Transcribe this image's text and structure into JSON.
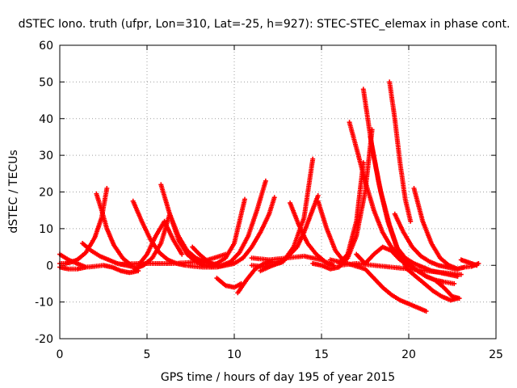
{
  "chart_data": {
    "type": "scatter",
    "title": "dSTEC Iono. truth (ufpr, Lon=310, Lat=-25, h=927): STEC-STEC_elemax in phase cont.",
    "xlabel": "GPS time / hours of day 195 of year 2015",
    "ylabel": "dSTEC  / TECUs",
    "xlim": [
      0,
      25
    ],
    "ylim": [
      -20,
      60
    ],
    "x_ticks": [
      0,
      5,
      10,
      15,
      20,
      25
    ],
    "y_ticks": [
      -20,
      -10,
      0,
      10,
      20,
      30,
      40,
      50,
      60
    ],
    "grid": true,
    "legend": "none",
    "marker": "plus",
    "color": "#ff0000",
    "series": [
      {
        "x": [
          0.0,
          0.3,
          0.6,
          1.0,
          1.5,
          2.0,
          2.4,
          2.7
        ],
        "y": [
          0.5,
          0.5,
          0.8,
          1.5,
          3.5,
          7.5,
          13.0,
          21.0
        ]
      },
      {
        "x": [
          2.1,
          2.4,
          2.7,
          3.1,
          3.6,
          4.1
        ],
        "y": [
          19.5,
          15.0,
          10.0,
          5.5,
          2.0,
          0.0
        ]
      },
      {
        "x": [
          0.0,
          0.5,
          1.0,
          1.5
        ],
        "y": [
          3.0,
          1.5,
          0.5,
          -0.5
        ]
      },
      {
        "x": [
          0.0,
          0.5,
          1.0,
          1.5,
          2.0,
          2.5,
          3.0,
          3.5,
          4.0,
          4.5
        ],
        "y": [
          -0.5,
          -1.0,
          -1.0,
          -0.5,
          -0.3,
          0.0,
          -0.5,
          -1.5,
          -2.0,
          -1.5
        ]
      },
      {
        "x": [
          1.3,
          1.8,
          2.3,
          2.8,
          3.3,
          3.8,
          4.3
        ],
        "y": [
          6.0,
          4.0,
          2.5,
          1.5,
          0.5,
          0.0,
          -0.5
        ]
      },
      {
        "x": [
          4.3,
          4.8,
          5.3,
          5.8,
          6.3,
          6.8,
          7.3,
          7.8,
          8.3
        ],
        "y": [
          -1.0,
          0.0,
          2.0,
          6.0,
          14.0,
          7.0,
          3.0,
          1.0,
          0.0
        ]
      },
      {
        "x": [
          4.2,
          4.7,
          5.2,
          5.7,
          6.2,
          6.7,
          7.2,
          7.7,
          8.2,
          8.7
        ],
        "y": [
          17.5,
          12.0,
          7.0,
          3.5,
          1.5,
          0.5,
          0.0,
          -0.3,
          -0.5,
          -0.5
        ]
      },
      {
        "x": [
          4.5,
          5.0,
          5.5,
          6.0,
          6.5,
          7.0
        ],
        "y": [
          0.0,
          3.0,
          8.0,
          12.0,
          7.0,
          3.0
        ]
      },
      {
        "x": [
          5.8,
          6.3,
          6.8,
          7.3,
          7.8,
          8.3,
          8.8,
          9.3
        ],
        "y": [
          22.0,
          14.0,
          8.0,
          4.0,
          2.0,
          0.8,
          0.2,
          0.0
        ]
      },
      {
        "x": [
          3.5,
          4.5,
          5.5,
          6.5,
          7.5,
          8.5,
          9.5
        ],
        "y": [
          0.3,
          0.5,
          0.5,
          0.5,
          0.8,
          1.5,
          3.0
        ]
      },
      {
        "x": [
          7.6,
          8.0,
          8.5,
          9.0
        ],
        "y": [
          5.0,
          3.0,
          1.0,
          0.0
        ]
      },
      {
        "x": [
          8.5,
          9.0,
          9.5,
          10.0,
          10.3,
          10.6
        ],
        "y": [
          0.0,
          0.5,
          2.0,
          6.0,
          12.0,
          18.0
        ]
      },
      {
        "x": [
          8.3,
          8.8,
          9.3,
          9.8,
          10.3,
          10.8,
          11.3,
          11.8
        ],
        "y": [
          0.0,
          -0.3,
          0.0,
          1.0,
          3.5,
          8.0,
          15.0,
          23.0
        ]
      },
      {
        "x": [
          8.5,
          9.0,
          9.5,
          10.0,
          10.5,
          11.0,
          11.5,
          12.0,
          12.3
        ],
        "y": [
          -0.5,
          -0.5,
          0.0,
          0.5,
          2.0,
          5.0,
          9.0,
          14.0,
          18.5
        ]
      },
      {
        "x": [
          9.0,
          9.5,
          10.0,
          10.4
        ],
        "y": [
          -3.5,
          -5.5,
          -6.0,
          -5.0
        ]
      },
      {
        "x": [
          10.2,
          10.7,
          11.2,
          11.7,
          12.2,
          12.7
        ],
        "y": [
          -7.5,
          -4.0,
          -1.0,
          0.5,
          1.0,
          0.8
        ]
      },
      {
        "x": [
          11.0,
          11.6,
          12.2,
          12.8,
          13.4,
          14.0,
          14.5
        ],
        "y": [
          0.0,
          -0.3,
          0.0,
          1.0,
          5.0,
          13.0,
          29.0
        ]
      },
      {
        "x": [
          11.5,
          12.2,
          12.9,
          13.6,
          14.0,
          14.4,
          14.8
        ],
        "y": [
          -1.5,
          0.0,
          1.5,
          5.0,
          9.0,
          14.0,
          19.0
        ]
      },
      {
        "x": [
          13.2,
          13.7,
          14.2,
          14.7,
          15.2,
          15.7
        ],
        "y": [
          17.0,
          11.0,
          6.0,
          3.0,
          1.0,
          0.0
        ]
      },
      {
        "x": [
          14.8,
          15.3,
          15.8,
          16.3
        ],
        "y": [
          17.5,
          10.0,
          4.0,
          1.0
        ]
      },
      {
        "x": [
          11.0,
          12.0,
          13.0,
          14.0,
          15.0,
          15.5
        ],
        "y": [
          2.0,
          1.5,
          2.0,
          2.5,
          1.5,
          0.0
        ]
      },
      {
        "x": [
          14.5,
          15.0,
          15.5,
          16.0,
          16.5,
          17.0,
          17.5,
          17.9
        ],
        "y": [
          0.5,
          0.0,
          -1.0,
          -0.5,
          2.0,
          8.0,
          20.0,
          37.0
        ]
      },
      {
        "x": [
          16.0,
          16.5,
          17.0,
          17.4
        ],
        "y": [
          0.5,
          3.0,
          12.0,
          28.0
        ]
      },
      {
        "x": [
          16.6,
          17.0,
          17.5,
          18.0,
          18.5,
          19.0,
          19.5,
          20.0,
          20.5,
          21.0,
          21.5,
          22.0,
          22.6
        ],
        "y": [
          39.0,
          32.0,
          23.0,
          15.0,
          9.0,
          5.0,
          2.5,
          0.5,
          -1.5,
          -3.0,
          -4.0,
          -4.5,
          -5.0
        ]
      },
      {
        "x": [
          17.4,
          17.9,
          18.4,
          18.9,
          19.4,
          19.9,
          20.4,
          20.9,
          21.4,
          21.9,
          22.4,
          22.8
        ],
        "y": [
          48.0,
          32.0,
          20.0,
          11.0,
          4.0,
          -1.0,
          -3.0,
          -5.0,
          -7.0,
          -8.5,
          -9.5,
          -9.0
        ]
      },
      {
        "x": [
          17.8,
          18.3,
          18.8,
          19.3,
          19.8,
          20.3,
          20.8,
          21.3,
          21.8,
          22.3,
          22.8
        ],
        "y": [
          35.0,
          22.0,
          12.0,
          5.0,
          2.0,
          0.5,
          -0.5,
          -1.5,
          -2.0,
          -2.5,
          -3.0
        ]
      },
      {
        "x": [
          17.0,
          17.5,
          18.0,
          18.5,
          19.0,
          19.5,
          20.0,
          20.5,
          21.0,
          21.5,
          22.0,
          22.5,
          22.9
        ],
        "y": [
          3.0,
          0.5,
          3.0,
          5.0,
          4.0,
          1.5,
          0.0,
          -1.5,
          -3.0,
          -4.0,
          -6.0,
          -8.5,
          -9.0
        ]
      },
      {
        "x": [
          18.9,
          19.2,
          19.5,
          19.8,
          20.1
        ],
        "y": [
          50.0,
          40.0,
          28.0,
          18.0,
          12.0
        ]
      },
      {
        "x": [
          19.2,
          19.7,
          20.2,
          20.7,
          21.2,
          21.7,
          22.2,
          22.7
        ],
        "y": [
          14.0,
          9.0,
          5.0,
          2.5,
          1.0,
          0.0,
          -0.5,
          -1.0
        ]
      },
      {
        "x": [
          20.3,
          20.8,
          21.3,
          21.8,
          22.3,
          22.8
        ],
        "y": [
          21.0,
          12.0,
          6.0,
          2.0,
          0.0,
          -1.0
        ]
      },
      {
        "x": [
          15.5,
          16.5,
          17.5,
          18.0,
          18.5,
          19.0,
          19.5,
          20.0,
          20.5,
          21.0
        ],
        "y": [
          1.5,
          0.5,
          -1.0,
          -3.5,
          -6.0,
          -8.0,
          -9.5,
          -10.5,
          -11.5,
          -12.5
        ]
      },
      {
        "x": [
          16.0,
          17.0,
          18.0,
          19.0,
          20.0,
          21.0,
          22.0,
          23.0
        ],
        "y": [
          0.0,
          0.5,
          0.0,
          -0.5,
          -1.0,
          -1.5,
          -2.0,
          -2.5
        ]
      },
      {
        "x": [
          23.0,
          23.3,
          23.6,
          23.9
        ],
        "y": [
          1.5,
          1.0,
          0.5,
          0.0
        ]
      },
      {
        "x": [
          22.8,
          23.2,
          23.6,
          24.0
        ],
        "y": [
          -1.0,
          -0.5,
          -0.3,
          0.5
        ]
      }
    ]
  }
}
